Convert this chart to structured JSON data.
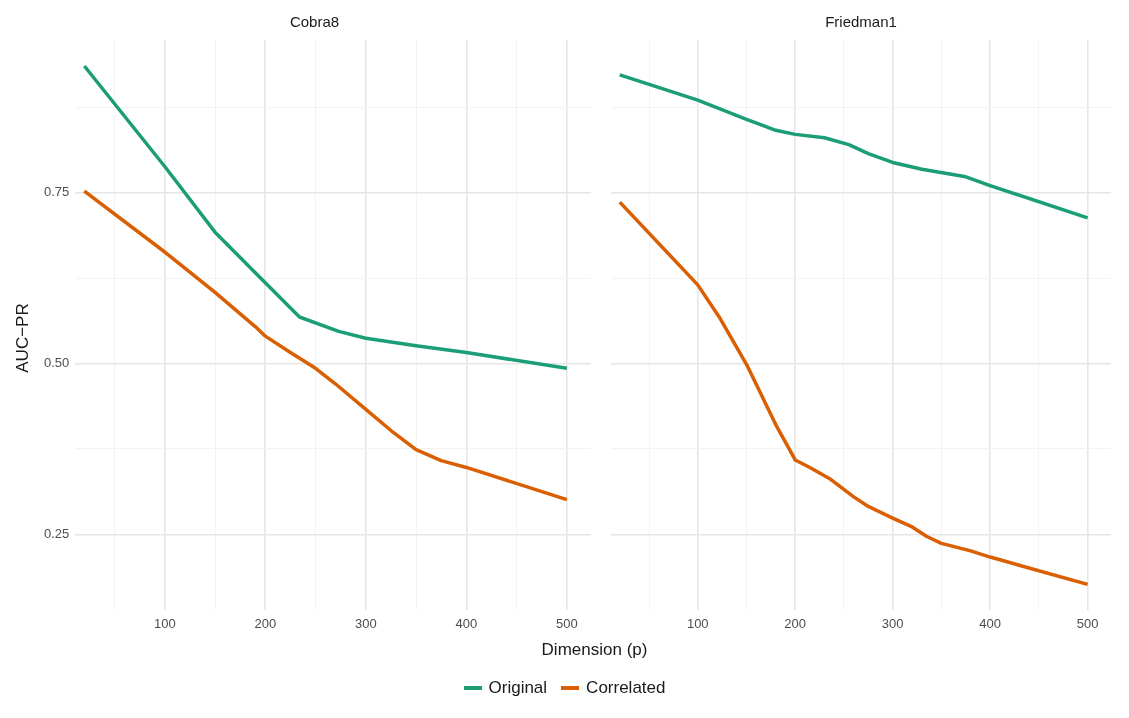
{
  "chart_data": [
    {
      "type": "line",
      "title": "Cobra8",
      "xlabel": "Dimension (p)",
      "ylabel": "AUC−PR",
      "legend": "bottom",
      "grid": true,
      "marker": "none",
      "xlim": [
        11,
        524
      ],
      "ylim": [
        0.139,
        0.973
      ],
      "xticks": [
        {
          "value": 50,
          "label": null
        },
        100,
        {
          "value": 150,
          "label": null
        },
        200,
        {
          "value": 250,
          "label": null
        },
        300,
        {
          "value": 350,
          "label": null
        },
        400,
        {
          "value": 450,
          "label": null
        },
        500
      ],
      "yticks": [
        0.25,
        {
          "value": 0.375,
          "label": null
        },
        {
          "value": 0.5,
          "label": "0.50"
        },
        {
          "value": 0.625,
          "label": null
        },
        0.75,
        {
          "value": 0.875,
          "label": null
        }
      ],
      "series": [
        {
          "name": "Original",
          "color": "#1b9e77",
          "x": [
            20,
            100,
            150,
            200,
            234,
            273,
            300,
            350,
            400,
            500
          ],
          "values": [
            0.935,
            0.788,
            0.692,
            0.618,
            0.568,
            0.547,
            0.537,
            0.526,
            0.516,
            0.493
          ]
        },
        {
          "name": "Correlated",
          "color": "#d95f02",
          "x": [
            20,
            100,
            150,
            190,
            200,
            225,
            250,
            270,
            300,
            325,
            350,
            375,
            400,
            500
          ],
          "values": [
            0.752,
            0.663,
            0.604,
            0.554,
            0.54,
            0.516,
            0.493,
            0.47,
            0.433,
            0.402,
            0.374,
            0.358,
            0.348,
            0.301
          ]
        }
      ]
    },
    {
      "type": "line",
      "title": "Friedman1",
      "grid": true,
      "marker": "none",
      "tick_labels": "x",
      "xlim": [
        11,
        524
      ],
      "ylim": [
        0.139,
        0.973
      ],
      "xticks": [
        {
          "value": 50,
          "label": null
        },
        100,
        {
          "value": 150,
          "label": null
        },
        200,
        {
          "value": 250,
          "label": null
        },
        300,
        {
          "value": 350,
          "label": null
        },
        400,
        {
          "value": 450,
          "label": null
        },
        500
      ],
      "yticks": [
        0.25,
        {
          "value": 0.375,
          "label": null
        },
        0.5,
        {
          "value": 0.625,
          "label": null
        },
        0.75,
        {
          "value": 0.875,
          "label": null
        }
      ],
      "series": [
        {
          "color": "#1b9e77",
          "x": [
            20,
            100,
            150,
            180,
            200,
            230,
            255,
            275,
            300,
            330,
            375,
            400,
            500
          ],
          "values": [
            0.922,
            0.885,
            0.857,
            0.841,
            0.835,
            0.83,
            0.82,
            0.807,
            0.794,
            0.784,
            0.773,
            0.76,
            0.713
          ]
        },
        {
          "color": "#d95f02",
          "x": [
            20,
            100,
            122,
            151,
            181,
            200,
            215,
            235,
            260,
            275,
            300,
            320,
            335,
            350,
            380,
            400,
            500
          ],
          "values": [
            0.736,
            0.615,
            0.568,
            0.496,
            0.408,
            0.359,
            0.348,
            0.332,
            0.305,
            0.291,
            0.274,
            0.261,
            0.247,
            0.237,
            0.226,
            0.217,
            0.177
          ]
        }
      ]
    }
  ]
}
